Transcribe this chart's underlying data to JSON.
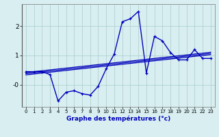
{
  "x": [
    0,
    1,
    2,
    3,
    4,
    5,
    6,
    7,
    8,
    9,
    10,
    11,
    12,
    13,
    14,
    15,
    16,
    17,
    18,
    19,
    20,
    21,
    22,
    23
  ],
  "y_main": [
    0.45,
    0.45,
    0.45,
    0.35,
    -0.55,
    -0.25,
    -0.2,
    -0.3,
    -0.35,
    -0.05,
    0.55,
    1.05,
    2.15,
    2.25,
    2.5,
    0.4,
    1.65,
    1.5,
    1.1,
    0.85,
    0.85,
    1.2,
    0.9,
    0.9
  ],
  "y_reg1": [
    0.42,
    0.45,
    0.48,
    0.51,
    0.54,
    0.57,
    0.6,
    0.63,
    0.66,
    0.69,
    0.72,
    0.75,
    0.78,
    0.81,
    0.84,
    0.87,
    0.9,
    0.93,
    0.96,
    0.99,
    1.02,
    1.05,
    1.08,
    1.11
  ],
  "y_reg2": [
    0.38,
    0.41,
    0.44,
    0.47,
    0.5,
    0.53,
    0.56,
    0.59,
    0.62,
    0.65,
    0.68,
    0.71,
    0.74,
    0.77,
    0.8,
    0.83,
    0.86,
    0.89,
    0.92,
    0.95,
    0.98,
    1.01,
    1.04,
    1.07
  ],
  "y_reg3": [
    0.34,
    0.37,
    0.4,
    0.43,
    0.46,
    0.49,
    0.52,
    0.55,
    0.58,
    0.61,
    0.64,
    0.67,
    0.7,
    0.73,
    0.76,
    0.79,
    0.82,
    0.85,
    0.88,
    0.91,
    0.94,
    0.97,
    1.0,
    1.03
  ],
  "xlabel": "Graphe des températures (°c)",
  "ylim": [
    -0.75,
    2.75
  ],
  "xlim": [
    -0.5,
    23.5
  ],
  "yticks": [
    0,
    1,
    2
  ],
  "ytick_labels": [
    "-0",
    "1",
    "2"
  ],
  "xticks": [
    0,
    1,
    2,
    3,
    4,
    5,
    6,
    7,
    8,
    9,
    10,
    11,
    12,
    13,
    14,
    15,
    16,
    17,
    18,
    19,
    20,
    21,
    22,
    23
  ],
  "bg_color": "#d8eef0",
  "line_color": "#0000bb",
  "grid_color": "#aacccc"
}
